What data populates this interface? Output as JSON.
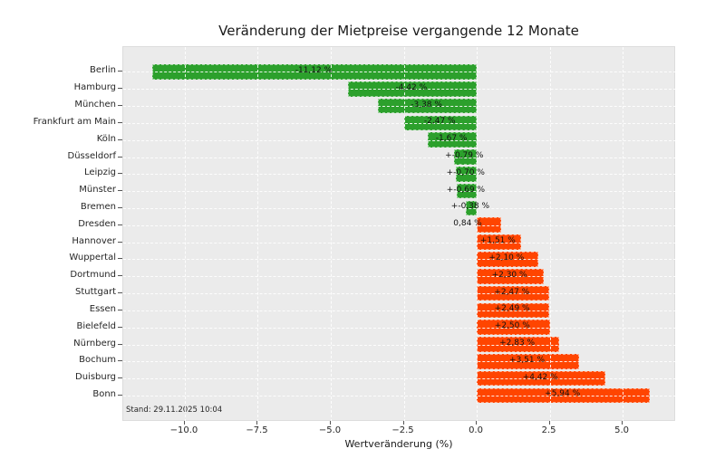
{
  "chart_data": {
    "type": "bar",
    "orientation": "horizontal",
    "title": "Veränderung der Mietpreise vergangende 12 Monate",
    "xlabel": "Wertveränderung (%)",
    "annotation": "Stand: 29.11.2025 10:04",
    "categories": [
      "Berlin",
      "Hamburg",
      "München",
      "Frankfurt am Main",
      "Köln",
      "Düsseldorf",
      "Leipzig",
      "Münster",
      "Bremen",
      "Dresden",
      "Hannover",
      "Wuppertal",
      "Dortmund",
      "Stuttgart",
      "Essen",
      "Bielefeld",
      "Nürnberg",
      "Bochum",
      "Duisburg",
      "Bonn"
    ],
    "values": [
      -11.12,
      -4.42,
      -3.38,
      -2.47,
      -1.67,
      -0.79,
      -0.7,
      -0.69,
      -0.38,
      0.84,
      1.51,
      2.1,
      2.3,
      2.47,
      2.49,
      2.5,
      2.83,
      3.51,
      4.42,
      5.94
    ],
    "bar_labels": [
      "-11,12 %",
      "-4,42 %",
      "-3,38 %",
      "-2,47 %",
      "-1,67 %",
      "+-0,79 %",
      "+-0,70 %",
      "+-0,69 %",
      "+-0,38 %",
      "0,84 %",
      "+1,51 %",
      "+2,10 %",
      "+2,30 %",
      "+2,47 %",
      "+2,49 %",
      "+2,50 %",
      "+2,83 %",
      "+3,51 %",
      "+4,42 %",
      "+5,94 %"
    ],
    "xticks": [
      -10.0,
      -7.5,
      -5.0,
      -2.5,
      0.0,
      2.5,
      5.0
    ],
    "xtick_labels": [
      "−10.0",
      "−7.5",
      "−5.0",
      "−2.5",
      "0.0",
      "2.5",
      "5.0"
    ],
    "xlim": [
      -12.11,
      6.83
    ],
    "grid": true,
    "legend": false,
    "colors": {
      "negative_bar": "#2ca02c",
      "positive_bar": "#ff4500",
      "plot_background": "#ebebeb",
      "grid_line": "#ffffff",
      "figure_background": "#ffffff"
    }
  }
}
